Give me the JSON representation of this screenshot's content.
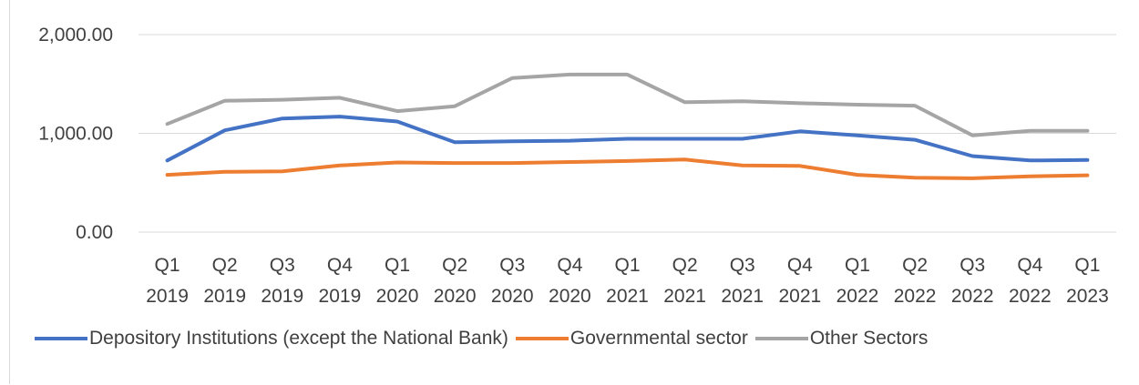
{
  "chart_data": {
    "type": "line",
    "title": "",
    "xlabel": "",
    "ylabel": "",
    "ylim": [
      0,
      2000
    ],
    "yticks": [
      "0.00",
      "1,000.00",
      "2,000.00"
    ],
    "ytick_values": [
      0,
      1000,
      2000
    ],
    "grid": true,
    "legend_position": "bottom",
    "categories": [
      [
        "Q1",
        "2019"
      ],
      [
        "Q2",
        "2019"
      ],
      [
        "Q3",
        "2019"
      ],
      [
        "Q4",
        "2019"
      ],
      [
        "Q1",
        "2020"
      ],
      [
        "Q2",
        "2020"
      ],
      [
        "Q3",
        "2020"
      ],
      [
        "Q4",
        "2020"
      ],
      [
        "Q1",
        "2021"
      ],
      [
        "Q2",
        "2021"
      ],
      [
        "Q3",
        "2021"
      ],
      [
        "Q4",
        "2021"
      ],
      [
        "Q1",
        "2022"
      ],
      [
        "Q2",
        "2022"
      ],
      [
        "Q3",
        "2022"
      ],
      [
        "Q4",
        "2022"
      ],
      [
        "Q1",
        "2023"
      ]
    ],
    "series": [
      {
        "name": "Depository Institutions (except the National Bank)",
        "color": "#4472c4",
        "values": [
          725,
          1030,
          1150,
          1170,
          1120,
          910,
          920,
          925,
          945,
          945,
          945,
          1020,
          980,
          935,
          770,
          725,
          730
        ]
      },
      {
        "name": "Governmental sector",
        "color": "#ed7d31",
        "values": [
          580,
          610,
          615,
          675,
          705,
          700,
          700,
          710,
          720,
          735,
          675,
          670,
          580,
          550,
          545,
          565,
          575
        ]
      },
      {
        "name": "Other Sectors",
        "color": "#a5a5a5",
        "values": [
          1095,
          1330,
          1340,
          1360,
          1225,
          1275,
          1560,
          1595,
          1595,
          1315,
          1325,
          1305,
          1290,
          1280,
          980,
          1025,
          1025
        ]
      }
    ]
  },
  "colors": {
    "gridline": "#d9d9d9",
    "text": "#404040"
  }
}
